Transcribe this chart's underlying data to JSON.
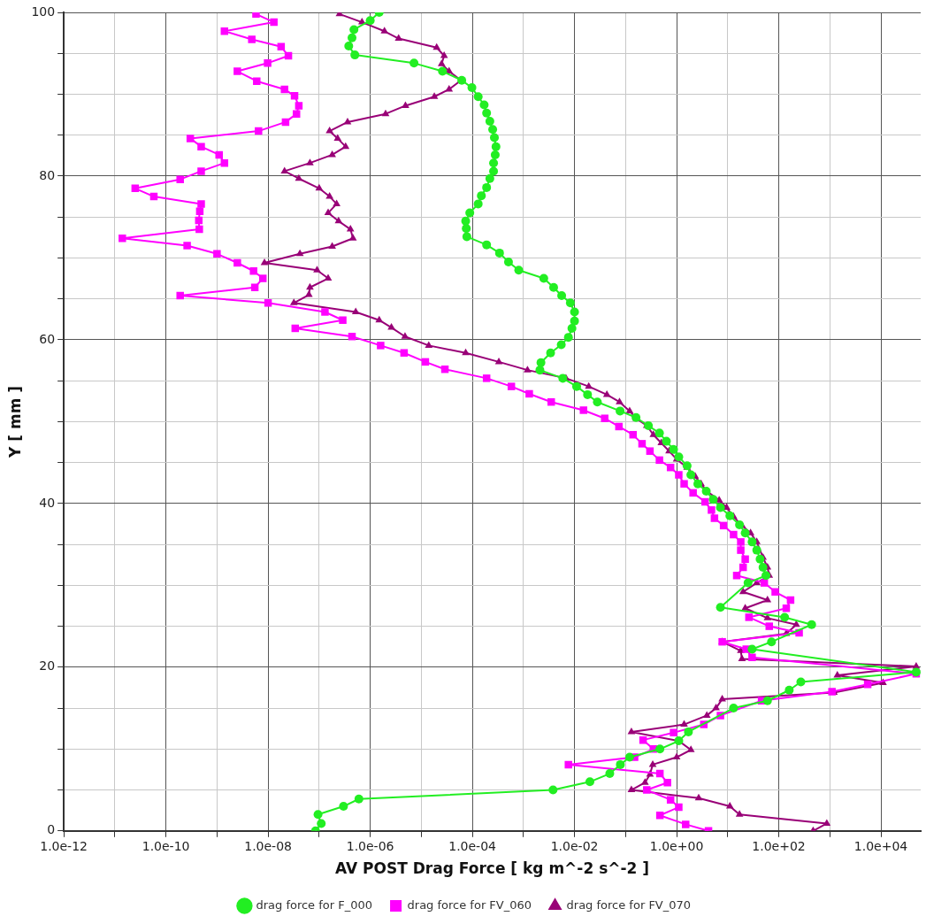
{
  "chart_data": {
    "type": "line",
    "xlabel": "AV POST Drag Force [ kg m^-2 s^-2 ]",
    "ylabel": "Y [ mm ]",
    "log": "x",
    "grid": true,
    "legend": "bottom",
    "xlim": [
      1e-12,
      60000.0
    ],
    "ylim": [
      0,
      100
    ],
    "xticks": [
      {
        "value": 1e-12,
        "label": "1.0e-12"
      },
      {
        "value": 1e-11,
        "label": null
      },
      {
        "value": 1e-10,
        "label": "1.0e-10"
      },
      {
        "value": 1e-09,
        "label": null
      },
      {
        "value": 1e-08,
        "label": "1.0e-08"
      },
      {
        "value": 1e-07,
        "label": null
      },
      {
        "value": 1e-06,
        "label": "1.0e-06"
      },
      {
        "value": 1e-05,
        "label": null
      },
      {
        "value": 0.0001,
        "label": "1.0e-04"
      },
      {
        "value": 0.001,
        "label": null
      },
      {
        "value": 0.01,
        "label": "1.0e-02"
      },
      {
        "value": 0.1,
        "label": null
      },
      {
        "value": 1,
        "label": "1.0e+00"
      },
      {
        "value": 10,
        "label": null
      },
      {
        "value": 100,
        "label": "1.0e+02"
      },
      {
        "value": 1000,
        "label": null
      },
      {
        "value": 10000,
        "label": "1.0e+04"
      }
    ],
    "yticks": [
      0,
      {
        "value": 5,
        "label": null
      },
      {
        "value": 10,
        "label": null
      },
      {
        "value": 15,
        "label": null
      },
      20,
      {
        "value": 25,
        "label": null
      },
      {
        "value": 30,
        "label": null
      },
      {
        "value": 35,
        "label": null
      },
      40,
      {
        "value": 45,
        "label": null
      },
      {
        "value": 50,
        "label": null
      },
      {
        "value": 55,
        "label": null
      },
      60,
      {
        "value": 65,
        "label": null
      },
      {
        "value": 70,
        "label": null
      },
      {
        "value": 75,
        "label": null
      },
      80,
      {
        "value": 85,
        "label": null
      },
      {
        "value": 90,
        "label": null
      },
      {
        "value": 95,
        "label": null
      },
      100
    ],
    "series": [
      {
        "name": "drag force for F_000",
        "color": "#22ee22",
        "marker": "circle",
        "x": [
          8.5e-08,
          1.1e-07,
          9.5e-08,
          3e-07,
          6e-07,
          0.0038,
          0.02,
          0.049,
          0.079,
          0.12,
          0.47,
          1.1,
          1.7,
          13,
          60,
          160,
          270,
          49000.0,
          30,
          72,
          440,
          130,
          7.2,
          25,
          56,
          49,
          43,
          37,
          30,
          22,
          17,
          11,
          7.2,
          5.2,
          3.8,
          2.6,
          1.9,
          1.6,
          1.1,
          0.87,
          0.63,
          0.46,
          0.28,
          0.16,
          0.078,
          0.028,
          0.018,
          0.011,
          0.0059,
          0.0021,
          0.0022,
          0.0034,
          0.0055,
          0.0076,
          0.0089,
          0.01,
          0.01,
          0.0083,
          0.0056,
          0.0039,
          0.0025,
          0.00081,
          0.00051,
          0.00034,
          0.00019,
          7.8e-05,
          7.6e-05,
          7.4e-05,
          8.9e-05,
          0.00013,
          0.00015,
          0.00019,
          0.00022,
          0.00026,
          0.00026,
          0.00028,
          0.00029,
          0.00027,
          0.00025,
          0.00022,
          0.00019,
          0.00017,
          0.00013,
          9.8e-05,
          6.2e-05,
          2.6e-05,
          7.2e-06,
          5e-07,
          3.8e-07,
          4.4e-07,
          4.8e-07,
          1e-06,
          1.5e-06
        ],
        "values": [
          0,
          0.9,
          2.0,
          3.0,
          3.9,
          5.0,
          6.0,
          7.0,
          8.1,
          9.0,
          10.0,
          11.0,
          12.1,
          15.0,
          15.9,
          17.2,
          18.2,
          19.4,
          22.2,
          23.1,
          25.2,
          26.1,
          27.3,
          30.3,
          31.2,
          32.2,
          33.2,
          34.3,
          35.3,
          36.4,
          37.4,
          38.5,
          39.5,
          40.5,
          41.5,
          42.4,
          43.5,
          44.6,
          45.7,
          46.6,
          47.6,
          48.6,
          49.5,
          50.5,
          51.3,
          52.4,
          53.3,
          54.3,
          55.3,
          56.3,
          57.2,
          58.4,
          59.4,
          60.3,
          61.4,
          62.3,
          63.4,
          64.5,
          65.4,
          66.4,
          67.5,
          68.5,
          69.5,
          70.6,
          71.6,
          72.6,
          73.6,
          74.5,
          75.5,
          76.6,
          77.6,
          78.6,
          79.7,
          80.6,
          81.6,
          82.6,
          83.6,
          84.7,
          85.7,
          86.7,
          87.7,
          88.7,
          89.7,
          90.8,
          91.7,
          92.8,
          93.8,
          94.8,
          95.9,
          96.9,
          97.9,
          99.0,
          100
        ]
      },
      {
        "name": "drag force for FV_060",
        "color": "#ff00ff",
        "marker": "square",
        "x": [
          4.2,
          1.5,
          0.47,
          1.1,
          0.76,
          0.26,
          0.66,
          0.47,
          0.0076,
          0.15,
          0.35,
          0.22,
          0.87,
          3.4,
          7.2,
          46,
          1100,
          5500,
          49000.0,
          30,
          23,
          7.8,
          250,
          65,
          26,
          140,
          170,
          85,
          52,
          15,
          20,
          22,
          18,
          18,
          13,
          8.3,
          5.5,
          4.8,
          3.6,
          2.1,
          1.4,
          1.1,
          0.76,
          0.46,
          0.3,
          0.21,
          0.14,
          0.074,
          0.039,
          0.015,
          0.0035,
          0.0013,
          0.00058,
          0.00019,
          2.9e-05,
          1.2e-05,
          4.6e-06,
          1.6e-06,
          4.4e-07,
          3.4e-08,
          2.9e-07,
          1.3e-07,
          1e-08,
          1.9e-10,
          5.5e-09,
          7.9e-09,
          5.2e-09,
          2.5e-09,
          1e-09,
          2.6e-10,
          1.4e-11,
          4.5e-10,
          4.4e-10,
          4.6e-10,
          4.9e-10,
          5.8e-11,
          2.5e-11,
          1.9e-10,
          4.9e-10,
          1.4e-09,
          1.1e-09,
          4.9e-10,
          3e-10,
          6.5e-09,
          2.2e-08,
          3.6e-08,
          4e-08,
          3.3e-08,
          2.1e-08,
          6e-09,
          2.5e-09,
          9.8e-09,
          2.5e-08,
          1.8e-08,
          4.8e-09,
          1.4e-09,
          1.3e-08,
          5.8e-09
        ],
        "values": [
          0,
          0.8,
          1.9,
          2.9,
          3.8,
          5.0,
          5.9,
          7.0,
          8.1,
          9.0,
          10.0,
          11.1,
          12.0,
          13.0,
          14.1,
          15.9,
          17.0,
          17.9,
          19.2,
          21.2,
          22.2,
          23.1,
          24.2,
          25.0,
          26.1,
          27.2,
          28.2,
          29.2,
          30.3,
          31.2,
          32.2,
          33.2,
          34.3,
          35.3,
          36.2,
          37.3,
          38.2,
          39.2,
          40.2,
          41.3,
          42.4,
          43.5,
          44.4,
          45.3,
          46.4,
          47.3,
          48.4,
          49.4,
          50.4,
          51.4,
          52.4,
          53.4,
          54.3,
          55.3,
          56.4,
          57.3,
          58.4,
          59.3,
          60.4,
          61.4,
          62.4,
          63.4,
          64.5,
          65.4,
          66.4,
          67.5,
          68.4,
          69.4,
          70.5,
          71.5,
          72.4,
          73.5,
          74.6,
          75.7,
          76.6,
          77.5,
          78.5,
          79.6,
          80.6,
          81.6,
          82.6,
          83.6,
          84.6,
          85.5,
          86.6,
          87.6,
          88.6,
          89.8,
          90.6,
          91.6,
          92.8,
          93.8,
          94.7,
          95.8,
          96.7,
          97.7,
          98.8,
          99.8
        ]
      },
      {
        "name": "drag force for FV_070",
        "color": "#990077",
        "marker": "triangle",
        "x": [
          470,
          870,
          17,
          11,
          2.7,
          0.13,
          0.24,
          0.3,
          0.34,
          1.0,
          1.9,
          1.1,
          0.13,
          1.4,
          3.9,
          5.9,
          7.8,
          1200,
          11000,
          1400,
          49000.0,
          19,
          18,
          7.8,
          140,
          220,
          60,
          22,
          60,
          20,
          37,
          65,
          60,
          49,
          37,
          28,
          19,
          13,
          9.5,
          6.8,
          3.9,
          3.0,
          2.3,
          1.6,
          1.0,
          0.71,
          0.5,
          0.35,
          0.26,
          0.16,
          0.12,
          0.076,
          0.043,
          0.019,
          0.0068,
          0.0012,
          0.00033,
          7.4e-05,
          1.4e-05,
          4.8e-06,
          2.6e-06,
          1.5e-06,
          5.2e-07,
          3.2e-08,
          6.3e-08,
          6.6e-08,
          1.5e-07,
          9.1e-08,
          8.5e-09,
          4.2e-08,
          1.8e-07,
          4.6e-07,
          4.1e-07,
          2.4e-07,
          1.5e-07,
          2.2e-07,
          1.6e-07,
          1e-07,
          4e-08,
          2.1e-08,
          6.6e-08,
          1.8e-07,
          3.3e-07,
          2.3e-07,
          1.6e-07,
          3.6e-07,
          2e-06,
          4.9e-06,
          1.8e-05,
          3.5e-05,
          6e-05,
          3.5e-05,
          2.5e-05,
          2.8e-05,
          2e-05,
          3.6e-06,
          1.9e-06,
          6.9e-07,
          2.5e-07
        ],
        "values": [
          0,
          0.9,
          2.0,
          3.0,
          4.0,
          5.0,
          5.9,
          6.9,
          8.1,
          9.0,
          9.9,
          11.0,
          12.1,
          13.0,
          14.1,
          15.0,
          16.1,
          16.9,
          18.1,
          19.0,
          20.1,
          21.0,
          22.0,
          23.1,
          24.1,
          25.2,
          26.0,
          27.2,
          28.2,
          29.2,
          30.3,
          31.2,
          32.2,
          33.4,
          35.3,
          36.4,
          37.3,
          38.4,
          39.5,
          40.4,
          41.5,
          42.4,
          43.3,
          44.4,
          45.4,
          46.4,
          47.4,
          48.4,
          49.5,
          50.4,
          51.3,
          52.4,
          53.3,
          54.3,
          55.3,
          56.3,
          57.3,
          58.4,
          59.3,
          60.4,
          61.5,
          62.4,
          63.4,
          64.5,
          65.5,
          66.4,
          67.5,
          68.5,
          69.4,
          70.5,
          71.4,
          72.4,
          73.5,
          74.5,
          75.5,
          76.6,
          77.5,
          78.5,
          79.7,
          80.6,
          81.6,
          82.6,
          83.6,
          84.6,
          85.5,
          86.6,
          87.6,
          88.6,
          89.7,
          90.6,
          91.7,
          92.8,
          93.7,
          94.7,
          95.7,
          96.8,
          97.7,
          98.8,
          99.8
        ]
      }
    ]
  }
}
